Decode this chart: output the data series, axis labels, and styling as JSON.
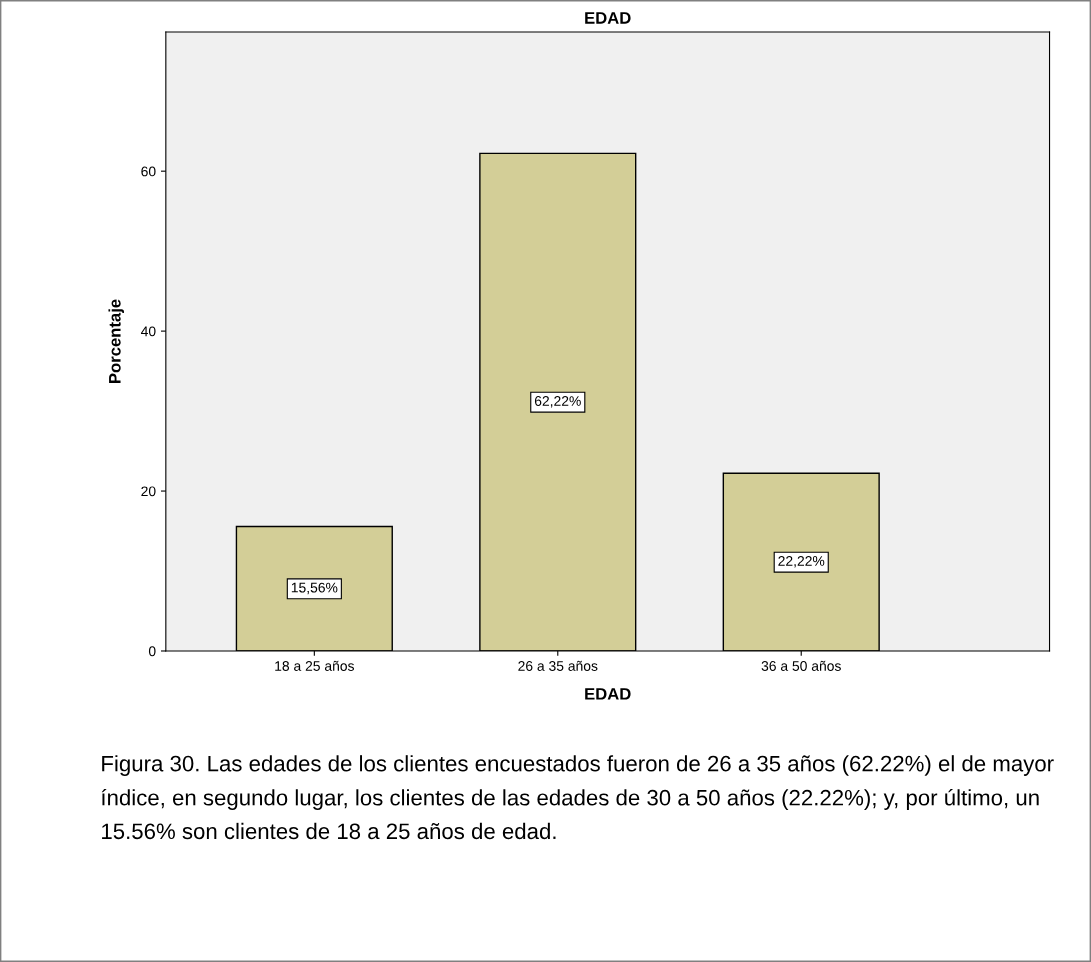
{
  "chart_data": {
    "type": "bar",
    "title": "EDAD",
    "xlabel": "EDAD",
    "ylabel": "Porcentaje",
    "categories": [
      "18 a 25 años",
      "26 a 35 años",
      "36 a 50 años"
    ],
    "values": [
      15.56,
      62.22,
      22.22
    ],
    "value_labels": [
      "15,56%",
      "62,22%",
      "22,22%"
    ],
    "color": "#d3ce97",
    "ylim": [
      0,
      77.4
    ],
    "yticks": [
      0,
      20,
      40,
      60
    ],
    "grid": false,
    "legend": false,
    "annotations": [
      "Figura 30. Las edades de los clientes encuestados fueron de 26 a 35 años (62.22%) el de mayor índice, en segundo lugar, los clientes de las edades de 30 a 50 años (22.22%); y, por último, un 15.56% son clientes de 18 a 25 años de edad."
    ]
  }
}
